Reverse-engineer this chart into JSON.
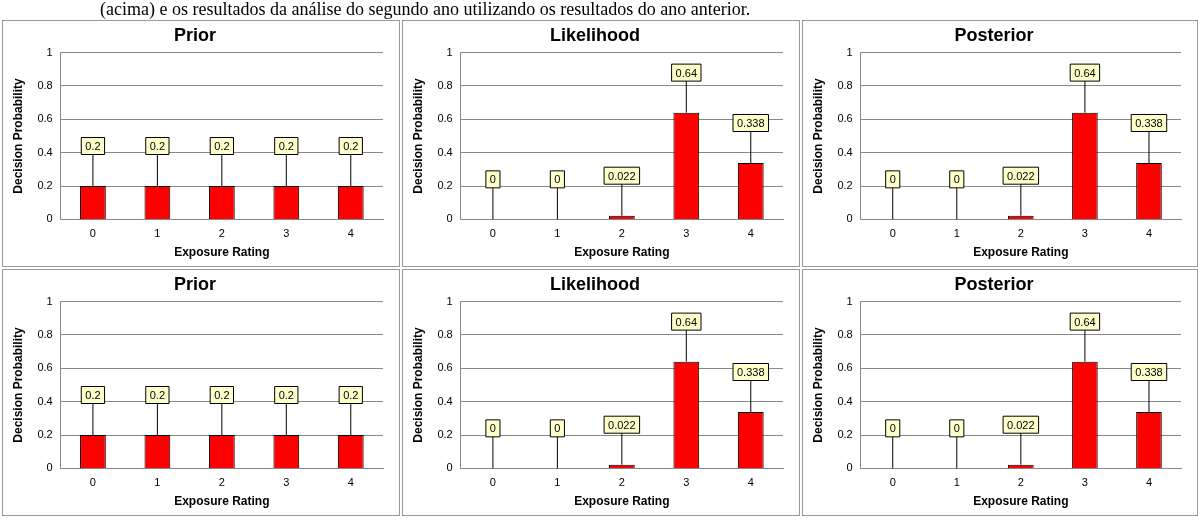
{
  "chart_data": [
    {
      "type": "bar",
      "title": "Prior",
      "xlabel": "Exposure Rating",
      "ylabel": "Decision Probability",
      "categories": [
        "0",
        "1",
        "2",
        "3",
        "4"
      ],
      "values": [
        0.2,
        0.2,
        0.2,
        0.2,
        0.2
      ],
      "color": "#ff0000",
      "ylim": [
        0,
        1
      ],
      "yticks": [
        0,
        0.2,
        0.4,
        0.6,
        0.8,
        1
      ],
      "grid": "y",
      "data_labels": true,
      "legend": false,
      "annotations": [
        "(acima) e os resultados da análise do segundo ano utilizando os resultados do ano anterior."
      ]
    },
    {
      "type": "bar",
      "title": "Likelihood",
      "xlabel": "Exposure Rating",
      "ylabel": "Decision Probability",
      "categories": [
        "0",
        "1",
        "2",
        "3",
        "4"
      ],
      "values": [
        0,
        0,
        0.022,
        0.64,
        0.338
      ],
      "color": "#ff0000",
      "ylim": [
        0,
        1
      ],
      "yticks": [
        0,
        0.2,
        0.4,
        0.6,
        0.8,
        1
      ],
      "grid": "y",
      "data_labels": true,
      "legend": false
    },
    {
      "type": "bar",
      "title": "Posterior",
      "xlabel": "Exposure Rating",
      "ylabel": "Decision Probability",
      "categories": [
        "0",
        "1",
        "2",
        "3",
        "4"
      ],
      "values": [
        0,
        0,
        0.022,
        0.64,
        0.338
      ],
      "color": "#ff0000",
      "ylim": [
        0,
        1
      ],
      "yticks": [
        0,
        0.2,
        0.4,
        0.6,
        0.8,
        1
      ],
      "grid": "y",
      "data_labels": true,
      "legend": false
    },
    {
      "type": "bar",
      "title": "Prior",
      "xlabel": "Exposure Rating",
      "ylabel": "Decision Probability",
      "categories": [
        "0",
        "1",
        "2",
        "3",
        "4"
      ],
      "values": [
        0.2,
        0.2,
        0.2,
        0.2,
        0.2
      ],
      "color": "#ff0000",
      "ylim": [
        0,
        1
      ],
      "yticks": [
        0,
        0.2,
        0.4,
        0.6,
        0.8,
        1
      ],
      "grid": "y",
      "data_labels": true,
      "legend": false
    },
    {
      "type": "bar",
      "title": "Likelihood",
      "xlabel": "Exposure Rating",
      "ylabel": "Decision Probability",
      "categories": [
        "0",
        "1",
        "2",
        "3",
        "4"
      ],
      "values": [
        0,
        0,
        0.022,
        0.64,
        0.338
      ],
      "color": "#ff0000",
      "ylim": [
        0,
        1
      ],
      "yticks": [
        0,
        0.2,
        0.4,
        0.6,
        0.8,
        1
      ],
      "grid": "y",
      "data_labels": true,
      "legend": false
    },
    {
      "type": "bar",
      "title": "Posterior",
      "xlabel": "Exposure Rating",
      "ylabel": "Decision Probability",
      "categories": [
        "0",
        "1",
        "2",
        "3",
        "4"
      ],
      "values": [
        0,
        0,
        0.022,
        0.64,
        0.338
      ],
      "color": "#ff0000",
      "ylim": [
        0,
        1
      ],
      "yticks": [
        0,
        0.2,
        0.4,
        0.6,
        0.8,
        1
      ],
      "grid": "y",
      "data_labels": true,
      "legend": false
    }
  ]
}
